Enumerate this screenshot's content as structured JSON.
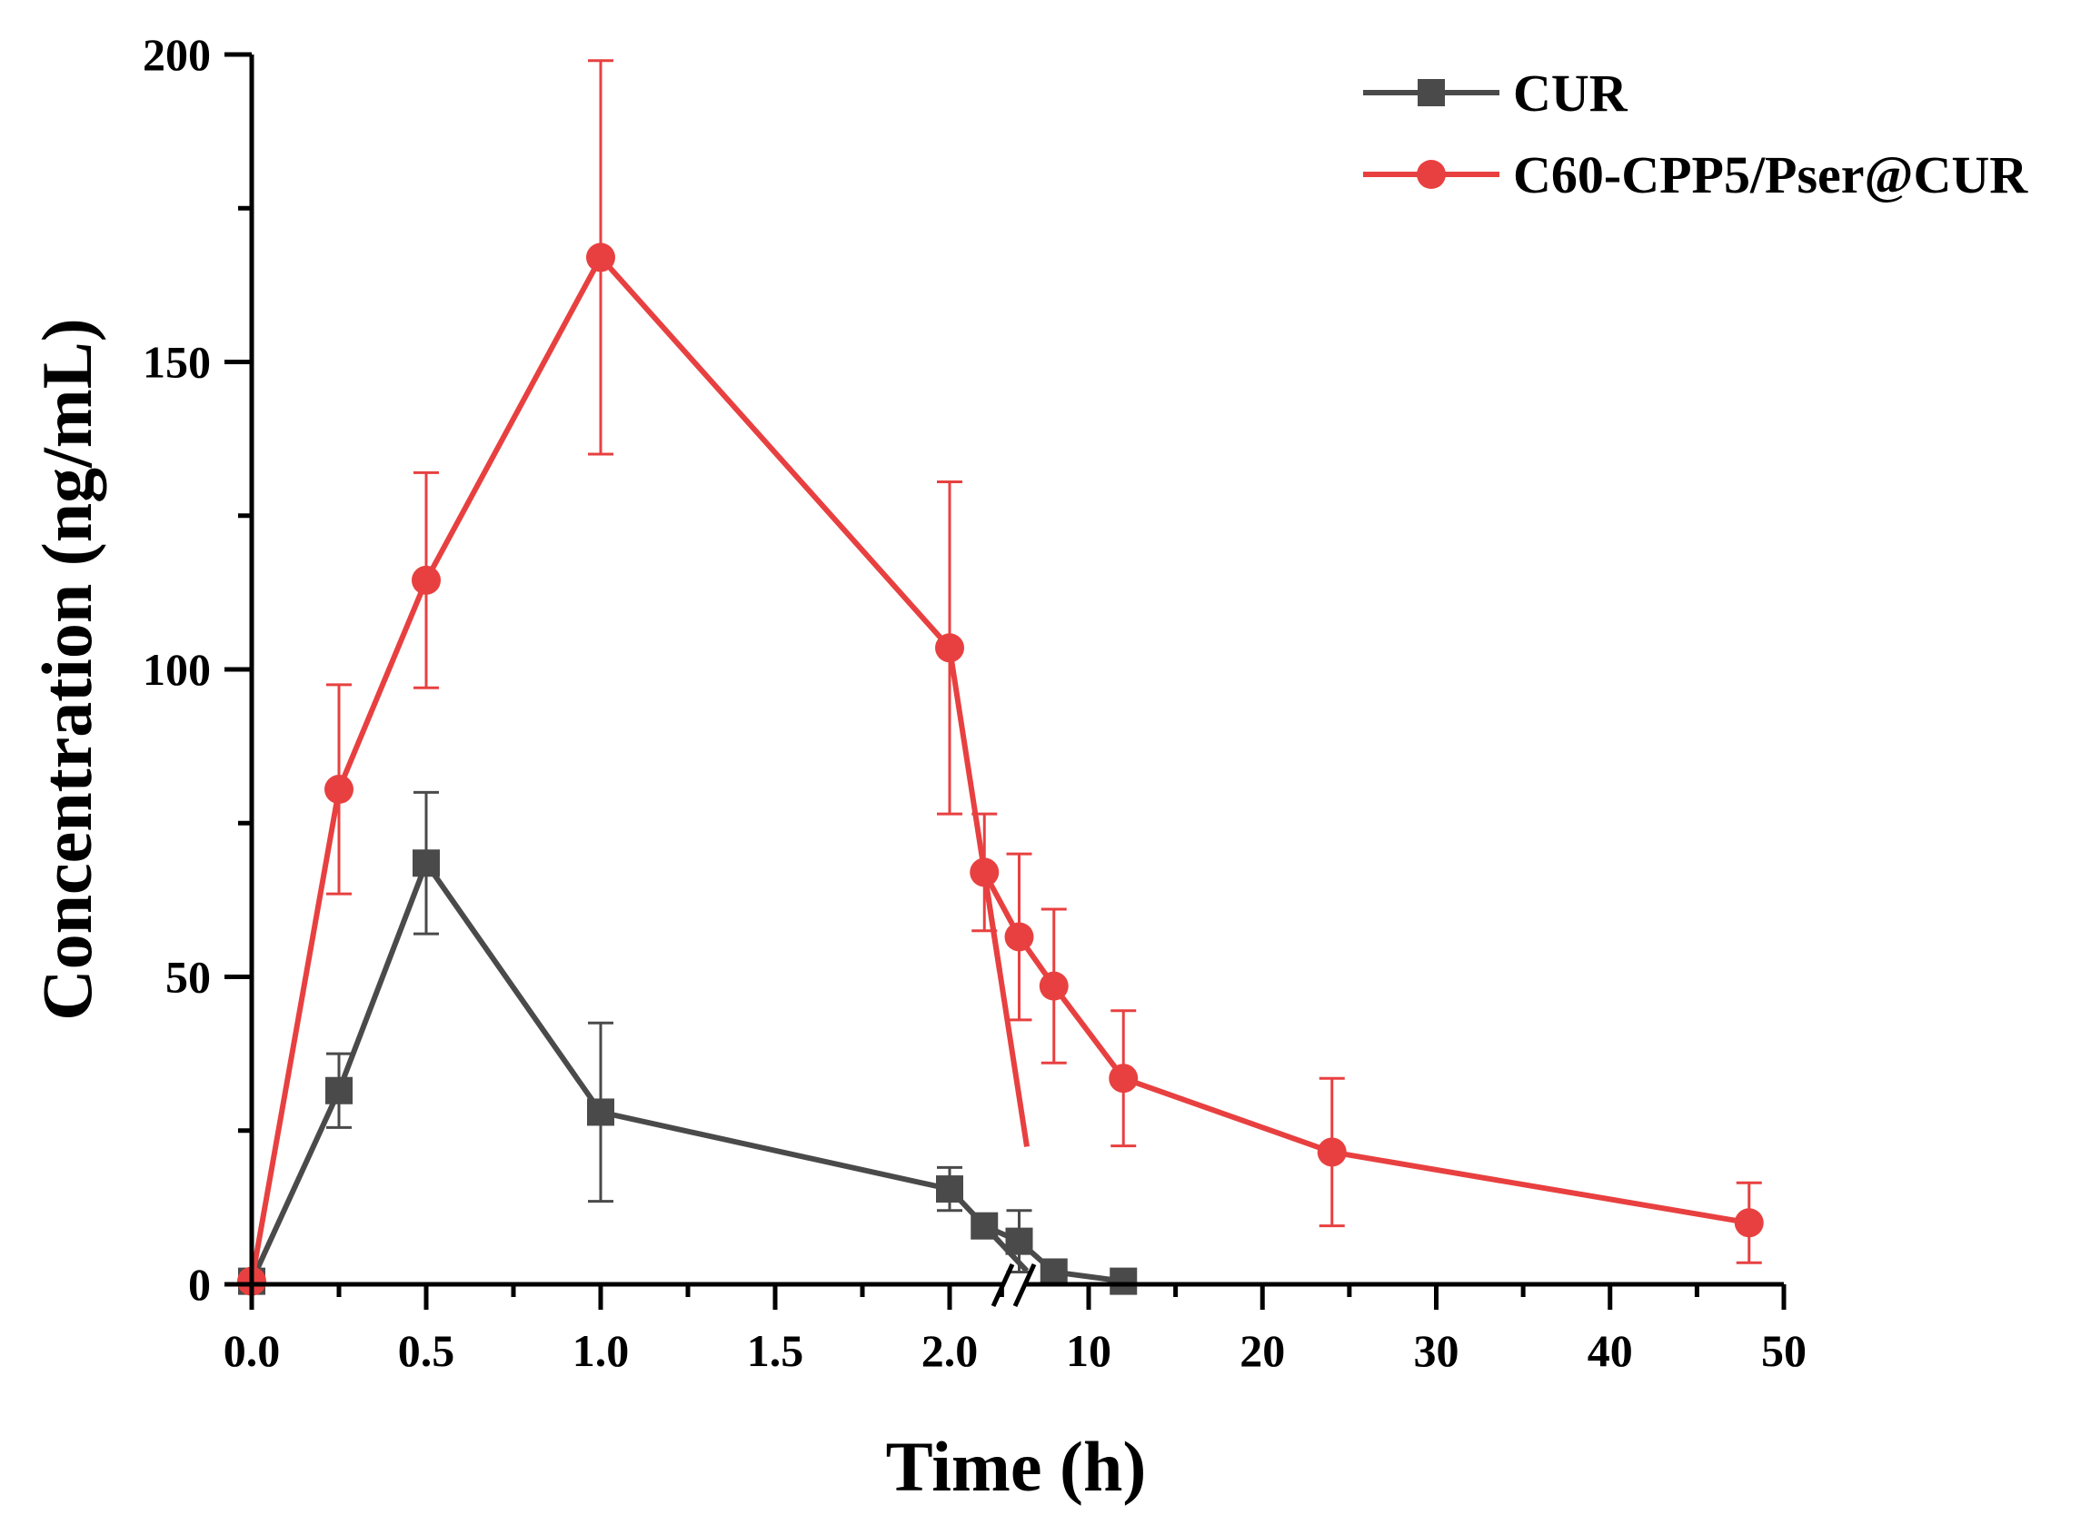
{
  "chart_data": {
    "type": "line",
    "title": "",
    "xlabel": "Time (h)",
    "ylabel": "Concentration (ng/mL)",
    "ylim": [
      0,
      200
    ],
    "y_ticks": [
      0,
      50,
      100,
      150,
      200
    ],
    "x_break": true,
    "x_segment1": {
      "range": [
        0,
        2.0
      ],
      "ticks": [
        0.0,
        0.5,
        1.0,
        1.5,
        2.0
      ],
      "tick_labels": [
        "0.0",
        "0.5",
        "1.0",
        "1.5",
        "2.0"
      ]
    },
    "x_segment2": {
      "range": [
        2.0,
        50
      ],
      "ticks": [
        10,
        20,
        30,
        40,
        50
      ],
      "tick_labels": [
        "10",
        "20",
        "30",
        "40",
        "50"
      ]
    },
    "legend_position": "top-right",
    "series": [
      {
        "name": "CUR",
        "color": "#4a4a4a",
        "marker": "square",
        "points": [
          {
            "x": 0,
            "y": 0.5,
            "err": 0
          },
          {
            "x": 0.25,
            "y": 31.5,
            "err": 6
          },
          {
            "x": 0.5,
            "y": 68.5,
            "err": 11.5
          },
          {
            "x": 1.0,
            "y": 28,
            "err": 14.5
          },
          {
            "x": 2.0,
            "y": 15.5,
            "err": 3.5
          },
          {
            "x": 4,
            "y": 9.5,
            "err": 0
          },
          {
            "x": 6,
            "y": 7,
            "err": 5
          },
          {
            "x": 8,
            "y": 2,
            "err": 0
          },
          {
            "x": 12,
            "y": 0.5,
            "err": 0
          }
        ]
      },
      {
        "name": "C60-CPP5/Pser@CUR",
        "color": "#e84040",
        "marker": "circle",
        "points": [
          {
            "x": 0,
            "y": 0.5,
            "err": 0
          },
          {
            "x": 0.25,
            "y": 80.5,
            "err": 17
          },
          {
            "x": 0.5,
            "y": 114.5,
            "err": 17.5
          },
          {
            "x": 1.0,
            "y": 167,
            "err": 32
          },
          {
            "x": 2.0,
            "y": 103.5,
            "err": 27
          },
          {
            "x": 4,
            "y": 67,
            "err": 9.5
          },
          {
            "x": 6,
            "y": 56.5,
            "err": 13.5
          },
          {
            "x": 8,
            "y": 48.5,
            "err": 12.5
          },
          {
            "x": 12,
            "y": 33.5,
            "err": 11
          },
          {
            "x": 24,
            "y": 21.5,
            "err": 12
          },
          {
            "x": 48,
            "y": 10,
            "err": 6.5
          }
        ]
      }
    ]
  }
}
